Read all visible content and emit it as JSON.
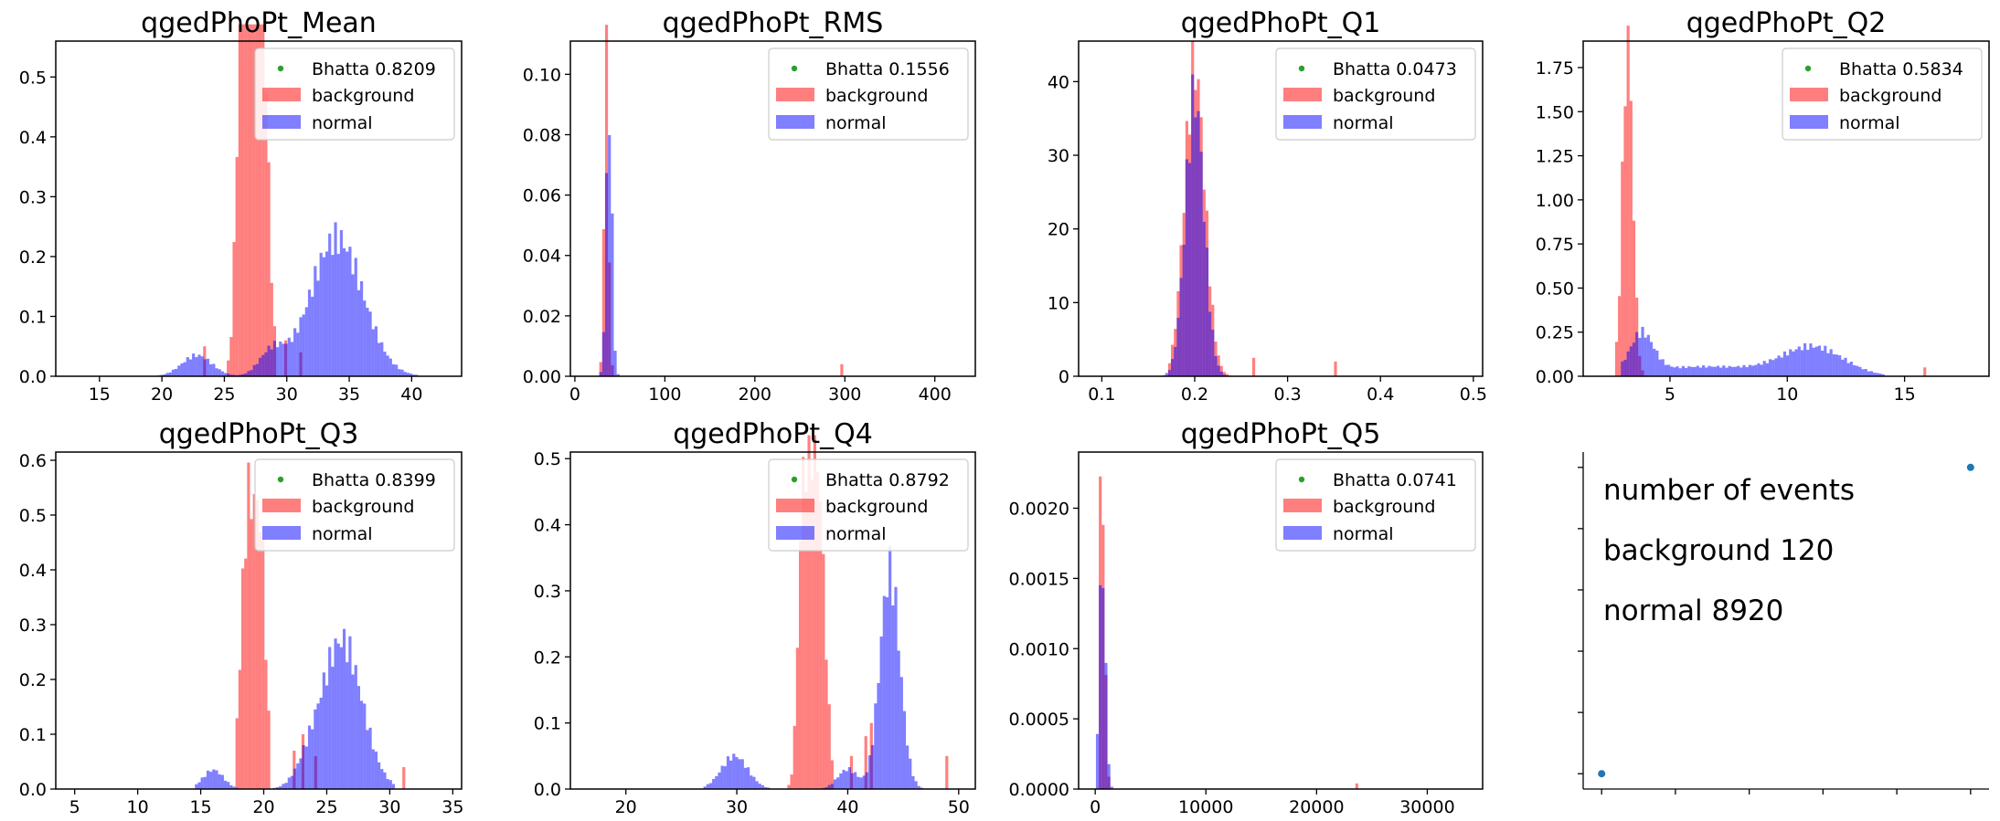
{
  "colors": {
    "background": "#ff0000",
    "normal": "#0000ff",
    "bhatta": "#2ca02c",
    "point": "#1f77b4"
  },
  "legend_labels": [
    "background",
    "normal"
  ],
  "chart_data": [
    {
      "type": "histogram",
      "title": "qgedPhoPt_Mean",
      "xlim": [
        11.5,
        44
      ],
      "ylim": [
        0,
        0.56
      ],
      "xticks": [
        15,
        20,
        25,
        30,
        35,
        40
      ],
      "xtick_labels": [
        "15",
        "20",
        "25",
        "30",
        "35",
        "40"
      ],
      "yticks": [
        0,
        0.1,
        0.2,
        0.3,
        0.4,
        0.5
      ],
      "ytick_labels": [
        "0.0",
        "0.1",
        "0.2",
        "0.3",
        "0.4",
        "0.5"
      ],
      "bhatta_label": "Bhatta 0.8209",
      "series": [
        {
          "name": "background",
          "peaks": [
            [
              26.8,
              0.6,
              0.45
            ],
            [
              27.5,
              0.55,
              0.45
            ],
            [
              28.2,
              0.45,
              0.35
            ],
            [
              26.2,
              0.3,
              0.25
            ]
          ],
          "range": [
            25.3,
            29.2
          ],
          "outliers": [
            [
              23.3,
              0.05
            ],
            [
              29.8,
              0.06
            ],
            [
              31.0,
              0.04
            ]
          ]
        },
        {
          "name": "normal",
          "peaks": [
            [
              34.0,
              2.1,
              0.23
            ],
            [
              22.8,
              1.2,
              0.035
            ],
            [
              28.8,
              1.0,
              0.04
            ]
          ],
          "range": [
            19.5,
            40.5
          ],
          "outliers": []
        }
      ]
    },
    {
      "type": "histogram",
      "title": "qgedPhoPt_RMS",
      "xlim": [
        -5,
        445
      ],
      "ylim": [
        0,
        0.111
      ],
      "xticks": [
        0,
        100,
        200,
        300,
        400
      ],
      "xtick_labels": [
        "0",
        "100",
        "200",
        "300",
        "400"
      ],
      "yticks": [
        0,
        0.02,
        0.04,
        0.06,
        0.08,
        0.1
      ],
      "ytick_labels": [
        "0.00",
        "0.02",
        "0.04",
        "0.06",
        "0.08",
        "0.10"
      ],
      "bhatta_label": "Bhatta 0.1556",
      "series": [
        {
          "name": "background",
          "peaks": [
            [
              35,
              2.5,
              0.107
            ]
          ],
          "range": [
            25,
            46
          ],
          "outliers": [
            [
              295,
              0.004
            ]
          ]
        },
        {
          "name": "normal",
          "peaks": [
            [
              38,
              3.2,
              0.091
            ]
          ],
          "range": [
            22,
            55
          ],
          "outliers": []
        }
      ]
    },
    {
      "type": "histogram",
      "title": "qgedPhoPt_Q1",
      "xlim": [
        0.075,
        0.51
      ],
      "ylim": [
        0,
        45.5
      ],
      "xticks": [
        0.1,
        0.2,
        0.3,
        0.4,
        0.5
      ],
      "xtick_labels": [
        "0.1",
        "0.2",
        "0.3",
        "0.4",
        "0.5"
      ],
      "yticks": [
        0,
        10,
        20,
        30,
        40
      ],
      "ytick_labels": [
        "0",
        "10",
        "20",
        "30",
        "40"
      ],
      "bhatta_label": "Bhatta 0.0473",
      "series": [
        {
          "name": "background",
          "peaks": [
            [
              0.2,
              0.011,
              42
            ]
          ],
          "range": [
            0.17,
            0.24
          ],
          "outliers": [
            [
              0.262,
              2.5
            ],
            [
              0.35,
              2.0
            ]
          ]
        },
        {
          "name": "normal",
          "peaks": [
            [
              0.2,
              0.01,
              38
            ]
          ],
          "range": [
            0.165,
            0.255
          ],
          "outliers": []
        }
      ]
    },
    {
      "type": "histogram",
      "title": "qgedPhoPt_Q2",
      "xlim": [
        1.3,
        18.6
      ],
      "ylim": [
        0,
        1.9
      ],
      "xticks": [
        5,
        10,
        15
      ],
      "xtick_labels": [
        "5",
        "10",
        "15"
      ],
      "yticks": [
        0,
        0.25,
        0.5,
        0.75,
        1.0,
        1.25,
        1.5,
        1.75
      ],
      "ytick_labels": [
        "0.00",
        "0.25",
        "0.50",
        "0.75",
        "1.00",
        "1.25",
        "1.50",
        "1.75"
      ],
      "bhatta_label": "Bhatta 0.5834",
      "series": [
        {
          "name": "background",
          "peaks": [
            [
              3.2,
              0.22,
              1.9
            ]
          ],
          "range": [
            2.7,
            4.0
          ],
          "outliers": [
            [
              15.8,
              0.05
            ]
          ]
        },
        {
          "name": "normal",
          "peaks": [
            [
              3.8,
              0.5,
              0.22
            ],
            [
              11.1,
              1.3,
              0.16
            ],
            [
              6.5,
              2.5,
              0.055
            ]
          ],
          "range": [
            2.9,
            14.2
          ],
          "outliers": []
        }
      ]
    },
    {
      "type": "histogram",
      "title": "qgedPhoPt_Q3",
      "xlim": [
        3.5,
        35.7
      ],
      "ylim": [
        0,
        0.615
      ],
      "xticks": [
        5,
        10,
        15,
        20,
        25,
        30,
        35
      ],
      "xtick_labels": [
        "5",
        "10",
        "15",
        "20",
        "25",
        "30",
        "35"
      ],
      "yticks": [
        0,
        0.1,
        0.2,
        0.3,
        0.4,
        0.5,
        0.6
      ],
      "ytick_labels": [
        "0.0",
        "0.1",
        "0.2",
        "0.3",
        "0.4",
        "0.5",
        "0.6"
      ],
      "bhatta_label": "Bhatta 0.8399",
      "series": [
        {
          "name": "background",
          "peaks": [
            [
              18.8,
              0.55,
              0.52
            ],
            [
              19.8,
              0.4,
              0.38
            ]
          ],
          "range": [
            17.7,
            20.5
          ],
          "outliers": [
            [
              23.0,
              0.1
            ],
            [
              22.3,
              0.07
            ],
            [
              24.0,
              0.06
            ],
            [
              31.0,
              0.04
            ]
          ]
        },
        {
          "name": "normal",
          "peaks": [
            [
              26.2,
              1.6,
              0.27
            ],
            [
              16.0,
              0.8,
              0.035
            ],
            [
              23.5,
              1.0,
              0.03
            ]
          ],
          "range": [
            14.5,
            30.5
          ],
          "outliers": []
        }
      ]
    },
    {
      "type": "histogram",
      "title": "qgedPhoPt_Q4",
      "xlim": [
        15,
        51.5
      ],
      "ylim": [
        0,
        0.51
      ],
      "xticks": [
        20,
        30,
        40,
        50
      ],
      "xtick_labels": [
        "20",
        "30",
        "40",
        "50"
      ],
      "yticks": [
        0,
        0.1,
        0.2,
        0.3,
        0.4,
        0.5
      ],
      "ytick_labels": [
        "0.0",
        "0.1",
        "0.2",
        "0.3",
        "0.4",
        "0.5"
      ],
      "bhatta_label": "Bhatta 0.8792",
      "series": [
        {
          "name": "background",
          "peaks": [
            [
              36.5,
              0.6,
              0.42
            ],
            [
              37.5,
              0.55,
              0.35
            ],
            [
              35.8,
              0.35,
              0.2
            ]
          ],
          "range": [
            34.5,
            38.6
          ],
          "outliers": [
            [
              40.2,
              0.05
            ],
            [
              41.5,
              0.08
            ],
            [
              42.0,
              0.1
            ],
            [
              48.8,
              0.05
            ]
          ]
        },
        {
          "name": "normal",
          "peaks": [
            [
              43.8,
              0.9,
              0.33
            ],
            [
              29.8,
              1.2,
              0.05
            ],
            [
              40.0,
              0.9,
              0.03
            ]
          ],
          "range": [
            27.0,
            47.5
          ],
          "outliers": []
        }
      ]
    },
    {
      "type": "histogram",
      "title": "qgedPhoPt_Q5",
      "xlim": [
        -1500,
        35000
      ],
      "ylim": [
        0,
        0.0024
      ],
      "xticks": [
        0,
        10000,
        20000,
        30000
      ],
      "xtick_labels": [
        "0",
        "10000",
        "20000",
        "30000"
      ],
      "yticks": [
        0,
        0.0005,
        0.001,
        0.0015,
        0.002
      ],
      "ytick_labels": [
        "0.0000",
        "0.0005",
        "0.0010",
        "0.0015",
        "0.0020"
      ],
      "bhatta_label": "Bhatta 0.0741",
      "series": [
        {
          "name": "background",
          "peaks": [
            [
              600,
              250,
              0.00235
            ]
          ],
          "range": [
            200,
            1400
          ],
          "outliers": [
            [
              23500,
              4e-05
            ]
          ]
        },
        {
          "name": "normal",
          "peaks": [
            [
              650,
              280,
              0.00165
            ]
          ],
          "range": [
            150,
            1500
          ],
          "outliers": []
        }
      ]
    },
    {
      "type": "scatter",
      "title": "",
      "xlim": [
        -0.05,
        1.05
      ],
      "ylim": [
        -0.05,
        1.05
      ],
      "points": [
        [
          0,
          0
        ],
        [
          1,
          1
        ]
      ],
      "xtick_count": 6,
      "ytick_count": 6,
      "text_lines": [
        "number of events",
        "background 120",
        "normal 8920"
      ]
    }
  ]
}
